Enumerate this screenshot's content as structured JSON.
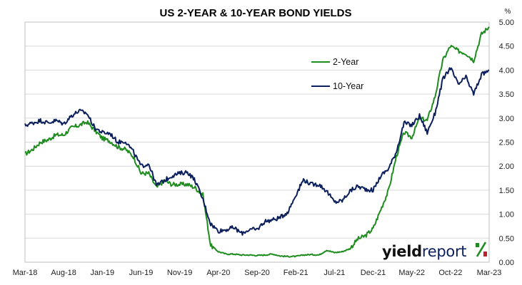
{
  "chart_data": {
    "type": "line",
    "title": "US 2-YEAR & 10-YEAR BOND YIELDS",
    "y_unit": "%",
    "xlabel": "",
    "ylabel": "",
    "ylim": [
      0,
      5
    ],
    "y_ticks": [
      "0.00",
      "0.50",
      "1.00",
      "1.50",
      "2.00",
      "2.50",
      "3.00",
      "3.50",
      "4.00",
      "4.50",
      "5.00"
    ],
    "x_ticks": [
      "Mar-18",
      "Aug-18",
      "Jan-19",
      "Jun-19",
      "Nov-19",
      "Apr-20",
      "Sep-20",
      "Feb-21",
      "Jul-21",
      "Dec-21",
      "May-22",
      "Oct-22",
      "Mar-23"
    ],
    "x_range": [
      "Mar-18",
      "Mar-23"
    ],
    "grid": true,
    "legend_position": "top-right",
    "series": [
      {
        "name": "2-Year",
        "color": "#1e8c1e",
        "points": [
          [
            "2018-03",
            2.25
          ],
          [
            "2018-04",
            2.35
          ],
          [
            "2018-05",
            2.5
          ],
          [
            "2018-06",
            2.55
          ],
          [
            "2018-07",
            2.65
          ],
          [
            "2018-08",
            2.65
          ],
          [
            "2018-09",
            2.8
          ],
          [
            "2018-10",
            2.85
          ],
          [
            "2018-11",
            2.92
          ],
          [
            "2018-12",
            2.75
          ],
          [
            "2019-01",
            2.58
          ],
          [
            "2019-02",
            2.52
          ],
          [
            "2019-03",
            2.4
          ],
          [
            "2019-04",
            2.35
          ],
          [
            "2019-05",
            2.2
          ],
          [
            "2019-06",
            1.85
          ],
          [
            "2019-07",
            1.85
          ],
          [
            "2019-08",
            1.55
          ],
          [
            "2019-09",
            1.7
          ],
          [
            "2019-10",
            1.62
          ],
          [
            "2019-11",
            1.62
          ],
          [
            "2019-12",
            1.62
          ],
          [
            "2020-01",
            1.55
          ],
          [
            "2020-02",
            1.4
          ],
          [
            "2020-03",
            0.35
          ],
          [
            "2020-04",
            0.22
          ],
          [
            "2020-05",
            0.17
          ],
          [
            "2020-06",
            0.17
          ],
          [
            "2020-07",
            0.15
          ],
          [
            "2020-08",
            0.15
          ],
          [
            "2020-09",
            0.14
          ],
          [
            "2020-10",
            0.15
          ],
          [
            "2020-11",
            0.17
          ],
          [
            "2020-12",
            0.13
          ],
          [
            "2021-01",
            0.12
          ],
          [
            "2021-02",
            0.12
          ],
          [
            "2021-03",
            0.15
          ],
          [
            "2021-04",
            0.16
          ],
          [
            "2021-05",
            0.15
          ],
          [
            "2021-06",
            0.25
          ],
          [
            "2021-07",
            0.2
          ],
          [
            "2021-08",
            0.22
          ],
          [
            "2021-09",
            0.28
          ],
          [
            "2021-10",
            0.48
          ],
          [
            "2021-11",
            0.55
          ],
          [
            "2021-12",
            0.7
          ],
          [
            "2022-01",
            1.1
          ],
          [
            "2022-02",
            1.5
          ],
          [
            "2022-03",
            2.2
          ],
          [
            "2022-04",
            2.7
          ],
          [
            "2022-05",
            2.6
          ],
          [
            "2022-06",
            3.0
          ],
          [
            "2022-07",
            2.95
          ],
          [
            "2022-08",
            3.45
          ],
          [
            "2022-09",
            4.2
          ],
          [
            "2022-10",
            4.5
          ],
          [
            "2022-11",
            4.4
          ],
          [
            "2022-12",
            4.35
          ],
          [
            "2023-01",
            4.2
          ],
          [
            "2023-02",
            4.75
          ],
          [
            "2023-03",
            4.9
          ]
        ]
      },
      {
        "name": "10-Year",
        "color": "#0b1f5c",
        "points": [
          [
            "2018-03",
            2.85
          ],
          [
            "2018-04",
            2.9
          ],
          [
            "2018-05",
            2.95
          ],
          [
            "2018-06",
            2.9
          ],
          [
            "2018-07",
            2.95
          ],
          [
            "2018-08",
            2.88
          ],
          [
            "2018-09",
            3.05
          ],
          [
            "2018-10",
            3.15
          ],
          [
            "2018-11",
            3.1
          ],
          [
            "2018-12",
            2.8
          ],
          [
            "2019-01",
            2.7
          ],
          [
            "2019-02",
            2.68
          ],
          [
            "2019-03",
            2.5
          ],
          [
            "2019-04",
            2.52
          ],
          [
            "2019-05",
            2.3
          ],
          [
            "2019-06",
            2.0
          ],
          [
            "2019-07",
            2.05
          ],
          [
            "2019-08",
            1.6
          ],
          [
            "2019-09",
            1.7
          ],
          [
            "2019-10",
            1.8
          ],
          [
            "2019-11",
            1.85
          ],
          [
            "2019-12",
            1.88
          ],
          [
            "2020-01",
            1.7
          ],
          [
            "2020-02",
            1.3
          ],
          [
            "2020-03",
            0.8
          ],
          [
            "2020-04",
            0.65
          ],
          [
            "2020-05",
            0.68
          ],
          [
            "2020-06",
            0.72
          ],
          [
            "2020-07",
            0.6
          ],
          [
            "2020-08",
            0.68
          ],
          [
            "2020-09",
            0.68
          ],
          [
            "2020-10",
            0.85
          ],
          [
            "2020-11",
            0.88
          ],
          [
            "2020-12",
            0.93
          ],
          [
            "2021-01",
            1.05
          ],
          [
            "2021-02",
            1.4
          ],
          [
            "2021-03",
            1.72
          ],
          [
            "2021-04",
            1.62
          ],
          [
            "2021-05",
            1.62
          ],
          [
            "2021-06",
            1.48
          ],
          [
            "2021-07",
            1.25
          ],
          [
            "2021-08",
            1.28
          ],
          [
            "2021-09",
            1.48
          ],
          [
            "2021-10",
            1.58
          ],
          [
            "2021-11",
            1.52
          ],
          [
            "2021-12",
            1.5
          ],
          [
            "2022-01",
            1.8
          ],
          [
            "2022-02",
            1.95
          ],
          [
            "2022-03",
            2.3
          ],
          [
            "2022-04",
            2.9
          ],
          [
            "2022-05",
            2.85
          ],
          [
            "2022-06",
            3.05
          ],
          [
            "2022-07",
            2.7
          ],
          [
            "2022-08",
            3.1
          ],
          [
            "2022-09",
            3.8
          ],
          [
            "2022-10",
            4.05
          ],
          [
            "2022-11",
            3.7
          ],
          [
            "2022-12",
            3.85
          ],
          [
            "2023-01",
            3.5
          ],
          [
            "2023-02",
            3.9
          ],
          [
            "2023-03",
            4.0
          ]
        ]
      }
    ]
  },
  "logo": {
    "text_yield": "yield",
    "text_report": "report",
    "symbol": "%"
  },
  "colors": {
    "grid": "#d9d9d9",
    "plot_border": "#bfbfbf",
    "logo_yield": "#111111",
    "logo_report": "#0b1f5c",
    "logo_symbol_green": "#1e8c1e",
    "logo_symbol_red": "#c0202a"
  }
}
